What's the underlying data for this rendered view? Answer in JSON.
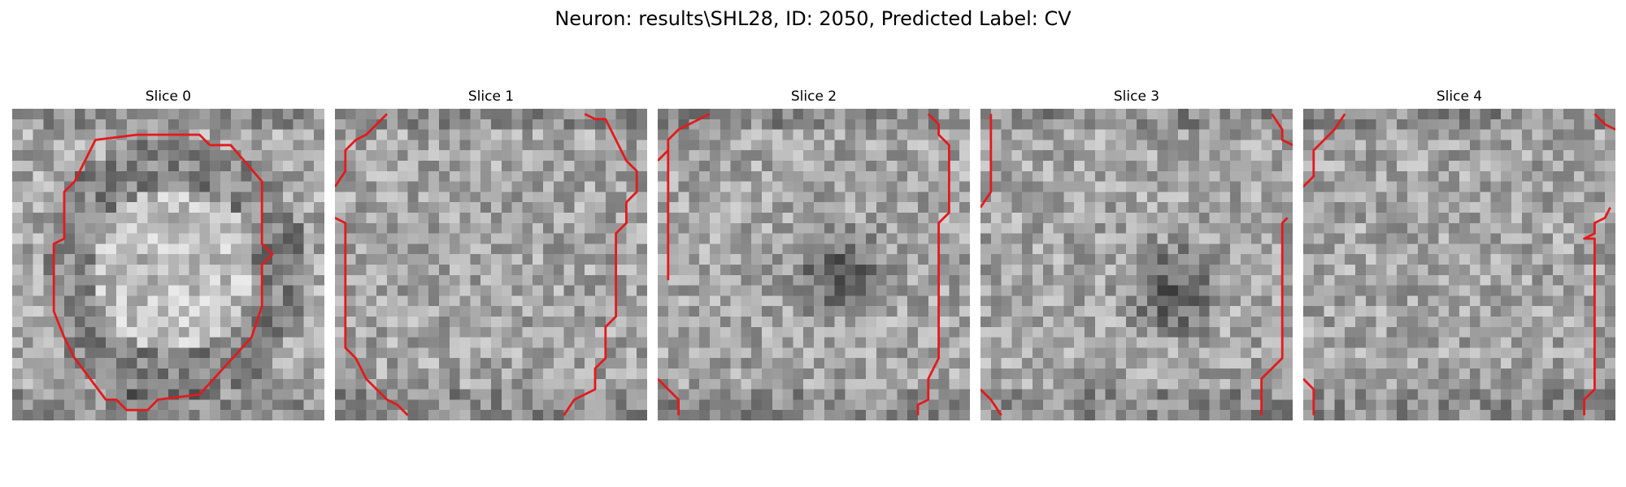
{
  "figure": {
    "title": "Neuron: results\\SHL28, ID: 2050, Predicted Label: CV"
  },
  "colors": {
    "contour": "#e41a1c",
    "background": "#ffffff"
  },
  "panels": [
    {
      "title": "Slice 0",
      "seed": 11,
      "darkCenter": false
    },
    {
      "title": "Slice 1",
      "seed": 23,
      "darkCenter": false
    },
    {
      "title": "Slice 2",
      "seed": 37,
      "darkCenter": true
    },
    {
      "title": "Slice 3",
      "seed": 41,
      "darkCenter": true
    },
    {
      "title": "Slice 4",
      "seed": 59,
      "darkCenter": false
    }
  ]
}
